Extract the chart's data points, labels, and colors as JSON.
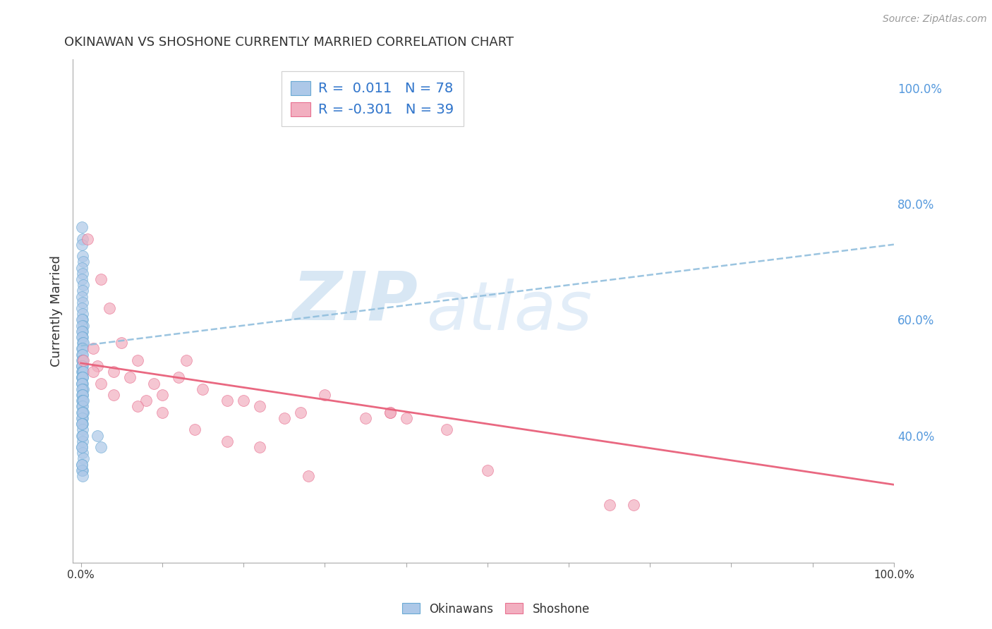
{
  "title": "OKINAWAN VS SHOSHONE CURRENTLY MARRIED CORRELATION CHART",
  "source": "Source: ZipAtlas.com",
  "ylabel": "Currently Married",
  "watermark": "ZIPatlas",
  "legend_label1": "R =  0.011   N = 78",
  "legend_label2": "R = -0.301   N = 39",
  "color_blue": "#adc8e8",
  "color_pink": "#f2afc0",
  "color_blue_edge": "#6aaad4",
  "color_pink_edge": "#e87090",
  "color_trend_blue": "#90bedd",
  "color_trend_pink": "#e8607a",
  "okinawan_x": [
    0.001,
    0.002,
    0.001,
    0.002,
    0.003,
    0.001,
    0.002,
    0.001,
    0.003,
    0.002,
    0.001,
    0.002,
    0.001,
    0.002,
    0.002,
    0.001,
    0.003,
    0.001,
    0.002,
    0.001,
    0.002,
    0.001,
    0.002,
    0.003,
    0.001,
    0.002,
    0.001,
    0.002,
    0.001,
    0.002,
    0.001,
    0.002,
    0.001,
    0.002,
    0.001,
    0.002,
    0.003,
    0.001,
    0.002,
    0.001,
    0.002,
    0.001,
    0.002,
    0.001,
    0.002,
    0.003,
    0.001,
    0.002,
    0.001,
    0.002,
    0.001,
    0.002,
    0.001,
    0.002,
    0.003,
    0.001,
    0.002,
    0.001,
    0.002,
    0.001,
    0.002,
    0.001,
    0.002,
    0.001,
    0.002,
    0.003,
    0.001,
    0.002,
    0.001,
    0.002,
    0.001,
    0.002,
    0.001,
    0.002,
    0.003,
    0.001,
    0.02,
    0.025
  ],
  "okinawan_y": [
    0.76,
    0.74,
    0.73,
    0.71,
    0.7,
    0.69,
    0.68,
    0.67,
    0.66,
    0.65,
    0.64,
    0.63,
    0.62,
    0.61,
    0.6,
    0.6,
    0.59,
    0.59,
    0.58,
    0.58,
    0.57,
    0.57,
    0.56,
    0.56,
    0.55,
    0.55,
    0.54,
    0.54,
    0.53,
    0.53,
    0.52,
    0.52,
    0.52,
    0.51,
    0.51,
    0.51,
    0.51,
    0.5,
    0.5,
    0.5,
    0.5,
    0.49,
    0.49,
    0.49,
    0.48,
    0.48,
    0.48,
    0.47,
    0.47,
    0.47,
    0.46,
    0.46,
    0.45,
    0.45,
    0.44,
    0.44,
    0.43,
    0.43,
    0.42,
    0.42,
    0.41,
    0.4,
    0.39,
    0.38,
    0.37,
    0.36,
    0.35,
    0.34,
    0.34,
    0.33,
    0.38,
    0.4,
    0.42,
    0.44,
    0.46,
    0.35,
    0.4,
    0.38
  ],
  "shoshone_x": [
    0.003,
    0.008,
    0.015,
    0.02,
    0.025,
    0.035,
    0.04,
    0.05,
    0.06,
    0.07,
    0.08,
    0.09,
    0.1,
    0.12,
    0.13,
    0.15,
    0.18,
    0.2,
    0.22,
    0.25,
    0.27,
    0.3,
    0.35,
    0.38,
    0.4,
    0.45,
    0.5,
    0.65,
    0.68,
    0.015,
    0.025,
    0.04,
    0.07,
    0.1,
    0.14,
    0.18,
    0.22,
    0.28,
    0.38
  ],
  "shoshone_y": [
    0.53,
    0.74,
    0.55,
    0.52,
    0.67,
    0.62,
    0.51,
    0.56,
    0.5,
    0.53,
    0.46,
    0.49,
    0.47,
    0.5,
    0.53,
    0.48,
    0.46,
    0.46,
    0.45,
    0.43,
    0.44,
    0.47,
    0.43,
    0.44,
    0.43,
    0.41,
    0.34,
    0.28,
    0.28,
    0.51,
    0.49,
    0.47,
    0.45,
    0.44,
    0.41,
    0.39,
    0.38,
    0.33,
    0.44
  ],
  "okinawan_R": 0.011,
  "shoshone_R": -0.301,
  "trend_blue_x0": 0.0,
  "trend_blue_y0": 0.555,
  "trend_blue_x1": 1.0,
  "trend_blue_y1": 0.73,
  "trend_pink_x0": 0.0,
  "trend_pink_y0": 0.525,
  "trend_pink_x1": 1.0,
  "trend_pink_y1": 0.315,
  "y_ticks": [
    0.4,
    0.6,
    0.8,
    1.0
  ],
  "y_tick_labels": [
    "40.0%",
    "60.0%",
    "80.0%",
    "100.0%"
  ],
  "legend_bottom": [
    "Okinawans",
    "Shoshone"
  ],
  "xlim": [
    -0.01,
    1.0
  ],
  "ylim": [
    0.18,
    1.05
  ]
}
